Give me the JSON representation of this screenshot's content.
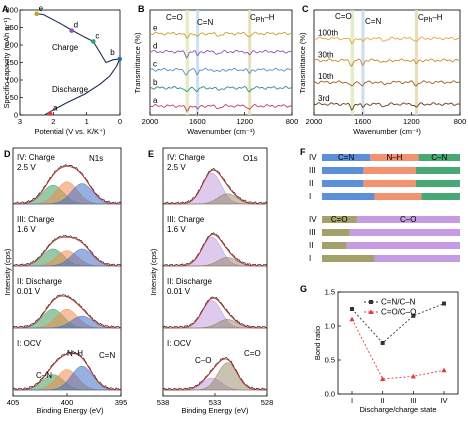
{
  "chart_data": [
    {
      "panel": "A",
      "type": "line",
      "xlabel": "Potential (V vs. K/K⁺)",
      "ylabel": "Specific capacity (mAh g⁻¹)",
      "xlim": [
        3,
        0
      ],
      "ylim": [
        0,
        300
      ],
      "xticks": [
        "3",
        "2",
        "1",
        "0"
      ],
      "yticks": [
        "0",
        "50",
        "100",
        "150",
        "200",
        "250",
        "300"
      ],
      "series": [
        {
          "name": "Discharge",
          "points": [
            [
              2.25,
              1
            ],
            [
              2.05,
              12
            ],
            [
              1.6,
              35
            ],
            [
              1.05,
              60
            ],
            [
              0.6,
              88
            ],
            [
              0.3,
              112
            ],
            [
              0.1,
              140
            ],
            [
              0.01,
              160
            ]
          ]
        },
        {
          "name": "Charge",
          "points": [
            [
              0.01,
              160
            ],
            [
              0.2,
              158
            ],
            [
              0.42,
              150
            ],
            [
              0.8,
              210
            ],
            [
              1.05,
              222
            ],
            [
              1.4,
              240
            ],
            [
              1.8,
              262
            ],
            [
              2.3,
              287
            ],
            [
              2.5,
              289
            ]
          ]
        }
      ],
      "markers": [
        {
          "label": "a",
          "x": 2.1,
          "y": 4,
          "color": "#d9393f"
        },
        {
          "label": "b",
          "x": 0.01,
          "y": 160,
          "color": "#2b6fb3"
        },
        {
          "label": "c",
          "x": 0.8,
          "y": 210,
          "color": "#2e9f70"
        },
        {
          "label": "d",
          "x": 1.45,
          "y": 241,
          "color": "#8a55b8"
        },
        {
          "label": "e",
          "x": 2.5,
          "y": 289,
          "color": "#c9a12c"
        }
      ],
      "annotations": [
        "Charge",
        "Discharge"
      ]
    },
    {
      "panel": "B",
      "type": "line",
      "xlabel": "Wavenumber (cm⁻¹)",
      "ylabel": "Transmittance (%)",
      "xlim": [
        2000,
        800
      ],
      "xticks": [
        "2000",
        "1600",
        "1200",
        "800"
      ],
      "bands": [
        "C=O",
        "C=N",
        "C_Ph–H"
      ],
      "band_positions": [
        1690,
        1600,
        1160
      ],
      "series": [
        {
          "name": "e",
          "color": "#c9a12c",
          "offset": 4
        },
        {
          "name": "d",
          "color": "#8a55b8",
          "offset": 3
        },
        {
          "name": "c",
          "color": "#5b8fc7",
          "offset": 2
        },
        {
          "name": "b",
          "color": "#2e8f8a",
          "offset": 1
        },
        {
          "name": "a",
          "color": "#c73a63",
          "offset": 0
        }
      ]
    },
    {
      "panel": "C",
      "type": "line",
      "xlabel": "Wavenumber (cm⁻¹)",
      "ylabel": "Transmittance (%)",
      "xlim": [
        2000,
        800
      ],
      "xticks": [
        "2000",
        "1600",
        "1200",
        "800"
      ],
      "bands": [
        "C=O",
        "C=N",
        "C_Ph–H"
      ],
      "series": [
        {
          "name": "100th",
          "color": "#e8a53a",
          "offset": 3
        },
        {
          "name": "30th",
          "color": "#cc8a2c",
          "offset": 2
        },
        {
          "name": "10th",
          "color": "#a0601d",
          "offset": 1
        },
        {
          "name": "3rd",
          "color": "#6b3e14",
          "offset": 0
        }
      ]
    },
    {
      "panel": "D",
      "type": "line",
      "title": "N1s",
      "xlabel": "Binding  Energy (eV)",
      "ylabel": "Intensity (cps)",
      "xlim": [
        405,
        395
      ],
      "xticks": [
        "405",
        "400",
        "395"
      ],
      "states": [
        "IV: Charge",
        "III: Charge",
        "II: Discharge",
        "I: OCV"
      ],
      "voltages": [
        "2.5 V",
        "1.6 V",
        "0.01 V",
        ""
      ],
      "peaks": [
        {
          "label": "C–N",
          "center": 401.3,
          "color": "#3f9e5e"
        },
        {
          "label": "N–H",
          "center": 400.0,
          "color": "#f08a4b"
        },
        {
          "label": "C=N",
          "center": 398.6,
          "color": "#3f6fc9"
        }
      ],
      "peak_heights": [
        [
          0.55,
          0.65,
          0.6
        ],
        [
          0.5,
          0.45,
          0.5
        ],
        [
          0.55,
          0.55,
          0.35
        ],
        [
          0.45,
          0.6,
          0.7
        ]
      ]
    },
    {
      "panel": "E",
      "type": "line",
      "title": "O1s",
      "xlabel": "Binding  Energy (eV)",
      "ylabel": "Intensity (cps)",
      "xlim": [
        538,
        528
      ],
      "xticks": [
        "538",
        "533",
        "528"
      ],
      "states": [
        "IV: Charge",
        "III: Charge",
        "II: Discharge",
        "I: OCV"
      ],
      "voltages": [
        "2.5 V",
        "1.6 V",
        "0.01 V",
        ""
      ],
      "peaks": [
        {
          "label": "C–O",
          "center": 533.3,
          "color": "#b48ad6"
        },
        {
          "label": "C=O",
          "center": 531.8,
          "color": "#8a7a55"
        }
      ],
      "peak_heights": [
        [
          0.9,
          0.3
        ],
        [
          0.85,
          0.25
        ],
        [
          0.8,
          0.25
        ],
        [
          0.35,
          0.8
        ]
      ]
    },
    {
      "panel": "F",
      "type": "bar",
      "orientation": "horizontal-stacked",
      "groups": [
        {
          "name": "N",
          "categories": [
            "IV",
            "III",
            "II",
            "I"
          ],
          "segments": [
            "C=N",
            "N–H",
            "C–N"
          ],
          "colors": [
            "#5b8fd9",
            "#f2926f",
            "#4aa776"
          ],
          "values": [
            [
              0.35,
              0.35,
              0.3
            ],
            [
              0.3,
              0.38,
              0.32
            ],
            [
              0.3,
              0.38,
              0.32
            ],
            [
              0.38,
              0.34,
              0.28
            ]
          ]
        },
        {
          "name": "O",
          "categories": [
            "IV",
            "III",
            "II",
            "I"
          ],
          "segments": [
            "C=O",
            "C–O"
          ],
          "colors": [
            "#a3a06a",
            "#c79be3"
          ],
          "values": [
            [
              0.25,
              0.75
            ],
            [
              0.2,
              0.8
            ],
            [
              0.18,
              0.82
            ],
            [
              0.38,
              0.62
            ]
          ]
        }
      ]
    },
    {
      "panel": "G",
      "type": "line",
      "xlabel": "Discharge/charge state",
      "ylabel": "Bond ratio",
      "categories": [
        "I",
        "II",
        "III",
        "IV"
      ],
      "ylim": [
        0,
        1.5
      ],
      "yticks": [
        "0.0",
        "0.5",
        "1.0",
        "1.5"
      ],
      "series": [
        {
          "name": "C=N/C–N",
          "values": [
            1.25,
            0.75,
            1.15,
            1.33
          ],
          "color": "#333333"
        },
        {
          "name": "C=O/C–O",
          "values": [
            1.1,
            0.22,
            0.26,
            0.35
          ],
          "color": "#e03a3a"
        }
      ]
    }
  ],
  "labels": {
    "A": "A",
    "B": "B",
    "C": "C",
    "D": "D",
    "E": "E",
    "F": "F",
    "G": "G",
    "a_charge": "Charge",
    "a_discharge": "Discharge",
    "b_c_o": "C=O",
    "b_c_n": "C=N",
    "b_cph": "C",
    "b_cph_sub": "Ph",
    "b_cph_h": "–H",
    "c_c_o": "C=O",
    "c_c_n": "C=N",
    "c_cph": "C",
    "c_cph_sub": "Ph",
    "c_cph_h": "–H",
    "d_cn": "C–N",
    "d_nh": "N–H",
    "d_cdn": "C=N",
    "e_co": "C–O",
    "e_cdo": "C=O",
    "f_iv": "Ⅳ",
    "f_iii": "Ⅲ",
    "f_ii": "Ⅱ",
    "f_i": "Ⅰ"
  }
}
